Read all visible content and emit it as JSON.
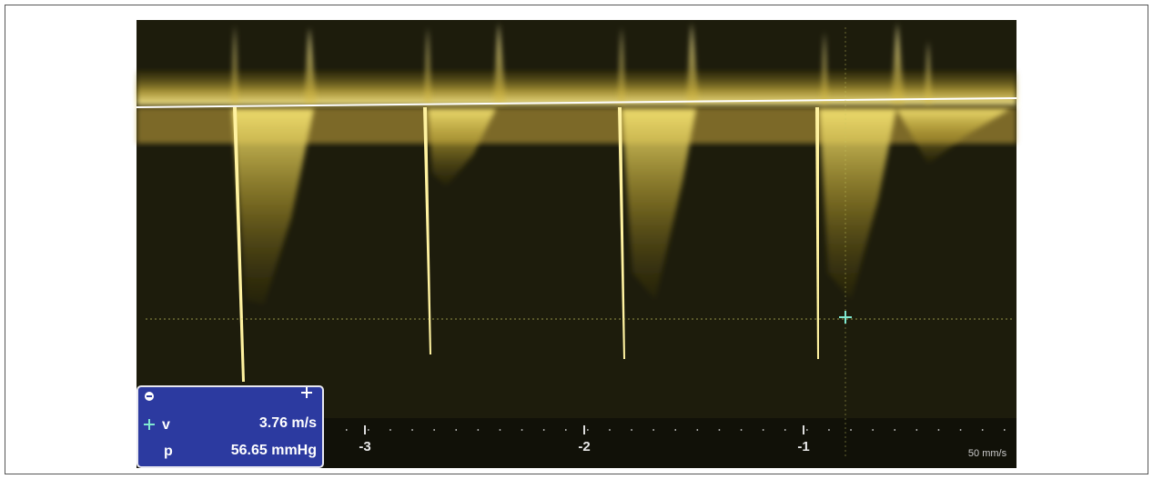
{
  "measurement": {
    "rows": [
      {
        "label": "v",
        "value": "3.76 m/s"
      },
      {
        "label": "p",
        "value": "56.65 mmHg"
      }
    ]
  },
  "time_axis": {
    "labels": [
      "-3",
      "-2",
      "-1"
    ]
  },
  "sweep_speed": "50 mm/s"
}
